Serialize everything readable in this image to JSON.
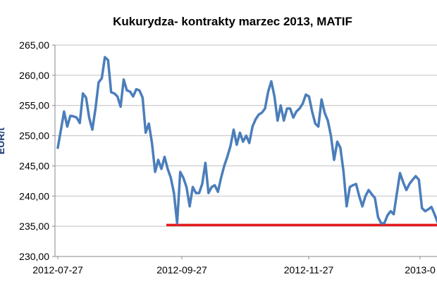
{
  "chart_data": {
    "type": "line",
    "title": "Kukurydza- kontrakty marzec 2013, MATIF",
    "ylabel": "EUR/t",
    "ylim": [
      230,
      265
    ],
    "yticks": [
      "230,00",
      "235,00",
      "240,00",
      "245,00",
      "250,00",
      "255,00",
      "260,00",
      "265,00"
    ],
    "xticks": [
      "2012-07-27",
      "2012-09-27",
      "2012-11-27",
      "2013-0"
    ],
    "grid": true,
    "colors": {
      "line": "#4a7ebb",
      "support": "#e31a1c",
      "grid": "#c0c0c0"
    },
    "support_level": 235.2,
    "series": [
      {
        "values": [
          248.0,
          251.0,
          254.0,
          251.5,
          253.3,
          253.2,
          253.0,
          252.1,
          257.0,
          256.3,
          253.0,
          251.0,
          254.5,
          258.8,
          259.5,
          263.0,
          262.5,
          257.2,
          257.0,
          256.5,
          254.8,
          259.3,
          257.5,
          257.3,
          256.5,
          257.7,
          257.5,
          256.3,
          250.5,
          252.0,
          248.8,
          244.0,
          246.0,
          244.5,
          246.5,
          244.5,
          243.0,
          240.5,
          235.5,
          244.0,
          243.0,
          241.5,
          238.3,
          241.5,
          240.5,
          240.5,
          242.0,
          245.5,
          240.5,
          241.5,
          241.8,
          240.7,
          243.0,
          245.0,
          246.5,
          248.3,
          251.0,
          248.5,
          250.5,
          249.0,
          250.0,
          248.8,
          251.5,
          252.7,
          253.5,
          253.8,
          254.5,
          257.3,
          259.0,
          256.5,
          252.5,
          255.0,
          252.5,
          254.5,
          254.5,
          253.0,
          254.0,
          254.5,
          255.3,
          256.8,
          256.5,
          254.0,
          252.0,
          251.5,
          256.0,
          253.8,
          252.5,
          250.0,
          246.0,
          249.0,
          248.0,
          244.0,
          238.3,
          241.5,
          241.8,
          242.0,
          240.0,
          238.3,
          240.0,
          241.0,
          240.3,
          239.7,
          236.5,
          235.5,
          235.5,
          236.8,
          237.5,
          237.0,
          240.5,
          243.8,
          242.3,
          241.0,
          242.0,
          242.7,
          243.3,
          242.7,
          238.0,
          237.5,
          237.8,
          238.2,
          237.0,
          235.6
        ]
      }
    ]
  }
}
